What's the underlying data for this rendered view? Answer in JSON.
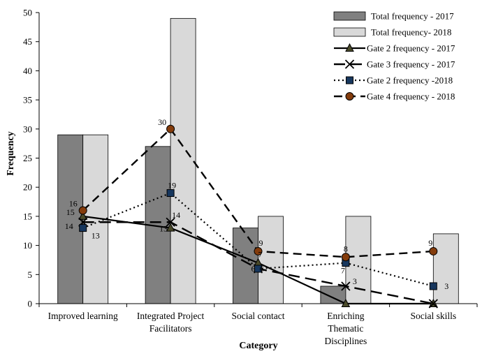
{
  "chart_data": {
    "type": "bar",
    "xlabel": "Category",
    "ylabel": "Frequency",
    "ylim": [
      0,
      50
    ],
    "ytick_step": 5,
    "grid": false,
    "legend_position": "top-right",
    "categories": [
      [
        "Improved learning"
      ],
      [
        "Integrated Project",
        "Facilitators"
      ],
      [
        "Social contact"
      ],
      [
        "Enriching",
        "Thematic",
        "Disciplines"
      ],
      [
        "Social skills"
      ]
    ],
    "bar_series": [
      {
        "name": "Total frequency - 2017",
        "values": [
          29,
          27,
          13,
          3,
          null
        ],
        "color": "#808080"
      },
      {
        "name": "Total frequency- 2018",
        "values": [
          29,
          49,
          15,
          15,
          12
        ],
        "color": "#d9d9d9"
      }
    ],
    "line_series": [
      {
        "name": "Gate 2 frequency - 2017",
        "values": [
          15,
          13,
          7,
          0,
          0
        ],
        "labels": [
          "15",
          "13",
          "7",
          "",
          ""
        ],
        "style": "solid",
        "marker": "triangle",
        "marker_color": "#4a4a2a",
        "color": "#000000"
      },
      {
        "name": "Gate 3 frequency - 2017",
        "values": [
          14,
          14,
          6,
          3,
          0
        ],
        "labels": [
          "14",
          "14",
          "6",
          "3",
          ""
        ],
        "style": "longdash",
        "marker": "x",
        "marker_color": "#000000",
        "color": "#000000"
      },
      {
        "name": "Gate 2 frequency -2018",
        "values": [
          13,
          19,
          6,
          7,
          3
        ],
        "labels": [
          "13",
          "19",
          "6",
          "7",
          "3"
        ],
        "style": "dotted",
        "marker": "square",
        "marker_color": "#17375e",
        "color": "#000000"
      },
      {
        "name": "Gate 4 frequency - 2018",
        "values": [
          16,
          30,
          9,
          8,
          9
        ],
        "labels": [
          "16",
          "30",
          "9",
          "8",
          "9"
        ],
        "style": "dashed",
        "marker": "circle",
        "marker_color": "#843c0c",
        "color": "#000000"
      }
    ]
  }
}
